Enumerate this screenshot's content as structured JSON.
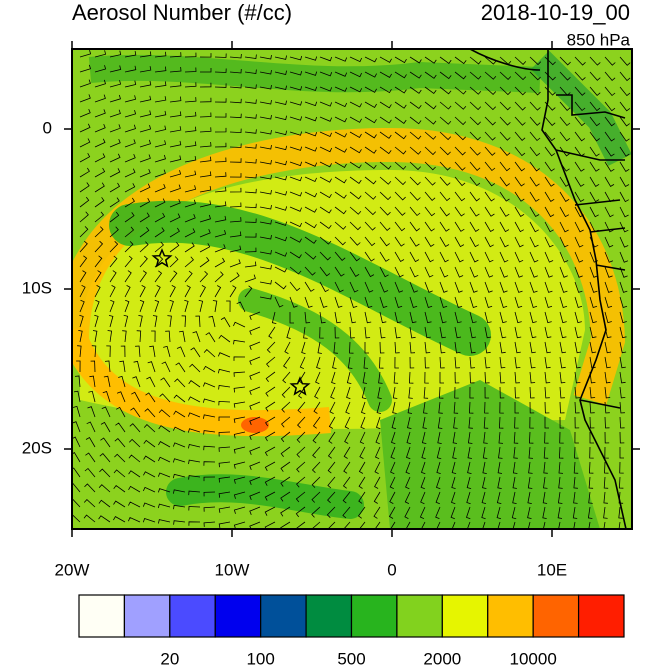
{
  "header": {
    "title": "Aerosol Number (#/cc)",
    "date": "2018-10-19_00",
    "level": "850 hPa"
  },
  "map": {
    "xlim": [
      -20,
      15
    ],
    "ylim": [
      -25,
      5
    ],
    "xticks": [
      {
        "value": -20,
        "label": "20W"
      },
      {
        "value": -10,
        "label": "10W"
      },
      0,
      {
        "value": 10,
        "label": "10E"
      }
    ],
    "yticks": [
      0,
      {
        "value": -10,
        "label": "10S"
      },
      {
        "value": -20,
        "label": "20S"
      }
    ]
  },
  "colorbar": {
    "colors": [
      "#fffff5",
      "#a0a0ff",
      "#4b4bff",
      "#0000ee",
      "#00509a",
      "#008c40",
      "#28b41e",
      "#82d21e",
      "#e6f500",
      "#ffbe00",
      "#ff6400",
      "#ff1e00"
    ],
    "labels": [
      20,
      100,
      500,
      2000,
      10000
    ]
  }
}
